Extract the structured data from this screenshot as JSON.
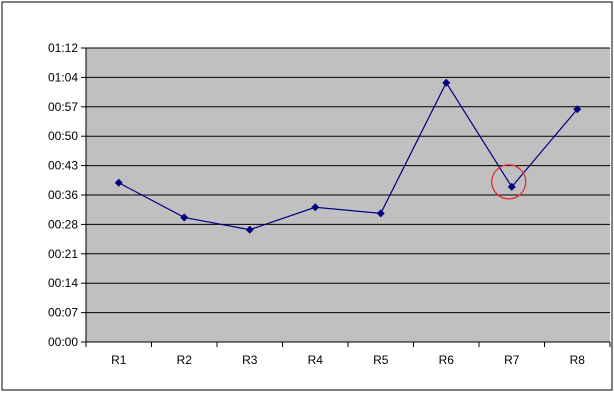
{
  "chart_data": {
    "type": "line",
    "categories": [
      "R1",
      "R2",
      "R3",
      "R4",
      "R5",
      "R6",
      "R7",
      "R8"
    ],
    "x_tick_labels": [
      "R1",
      "R2",
      "R3",
      "R4",
      "R5",
      "R6",
      "R7",
      "R8"
    ],
    "y_tick_labels": [
      "00:00",
      "00:07",
      "00:14",
      "00:21",
      "00:28",
      "00:36",
      "00:43",
      "00:50",
      "00:57",
      "01:04",
      "01:12"
    ],
    "ylim": [
      0,
      72
    ],
    "y_unit": "seconds",
    "series": [
      {
        "values": [
          39,
          30.5,
          27.5,
          33,
          31.5,
          63.5,
          38,
          57
        ],
        "color": "#000080"
      }
    ],
    "grid": true,
    "legend": "none",
    "plot_background": "#c0c0c0",
    "gridline_color": "#000000",
    "highlight": {
      "category": "R7",
      "shape": "circle",
      "color": "#e03030"
    },
    "title": "",
    "xlabel": "",
    "ylabel": ""
  }
}
